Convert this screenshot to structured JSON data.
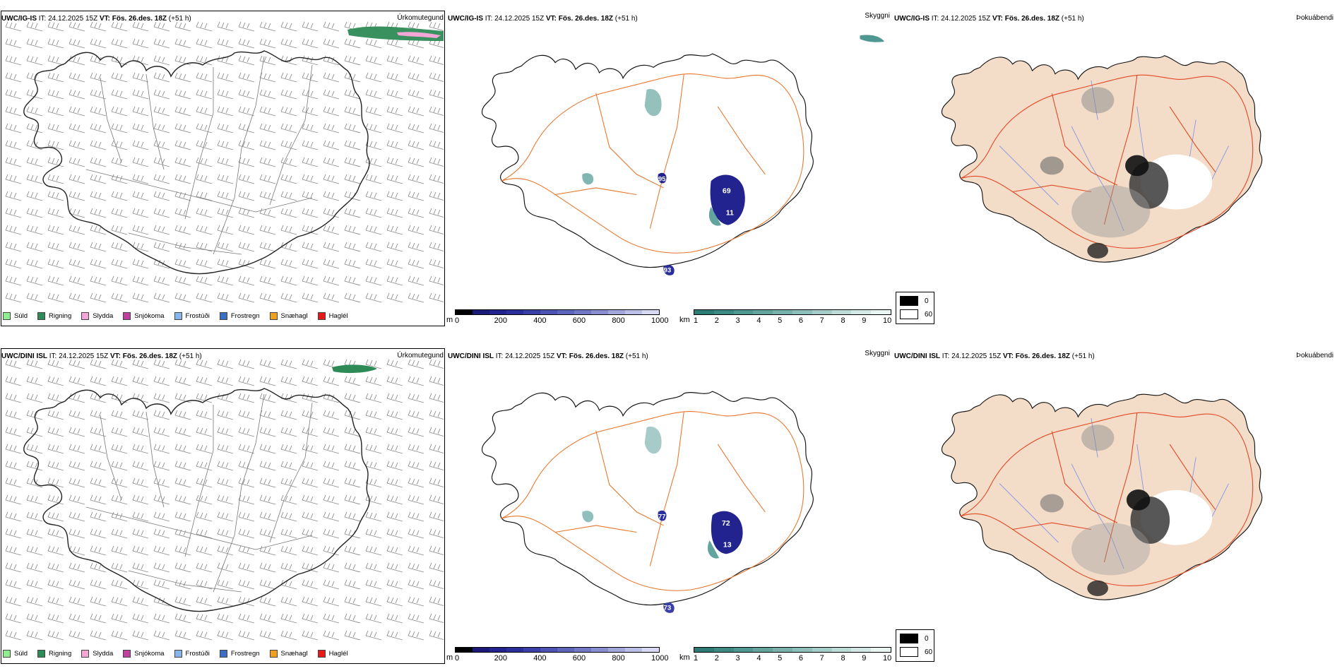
{
  "rows": [
    {
      "model": "UWC/IG-IS",
      "it_label": "IT:",
      "it_value": "24.12.2025 15Z",
      "vt_label": "VT:",
      "vt_value": "Fös. 26.des. 18Z",
      "lead": "(+51 h)",
      "panel_names": [
        "Úrkomutegund",
        "Skyggni",
        "Þokuábendi"
      ],
      "cloud_labels": [
        "69",
        "11",
        "95",
        "93"
      ]
    },
    {
      "model": "UWC/DINI ISL",
      "it_label": "IT:",
      "it_value": "24.12.2025 15Z",
      "vt_label": "VT:",
      "vt_value": "Fös. 26.des. 18Z",
      "lead": "(+51 h)",
      "panel_names": [
        "Úrkomutegund",
        "Skyggni",
        "Þokuábendi"
      ],
      "cloud_labels": [
        "72",
        "13",
        "77",
        "73"
      ]
    }
  ],
  "precip_legend": [
    {
      "label": "Súld",
      "color": "#90ee90"
    },
    {
      "label": "Rigning",
      "color": "#2e8b57"
    },
    {
      "label": "Slydda",
      "color": "#f4a6d7"
    },
    {
      "label": "Snjókoma",
      "color": "#c040a0"
    },
    {
      "label": "Frostúði",
      "color": "#87b6ee"
    },
    {
      "label": "Frostregn",
      "color": "#3a6fc8"
    },
    {
      "label": "Snæhagl",
      "color": "#f0a020"
    },
    {
      "label": "Haglél",
      "color": "#e81818"
    }
  ],
  "ceiling_scale": {
    "unit": "m",
    "ticks": [
      "0",
      "200",
      "400",
      "600",
      "800",
      "1000"
    ],
    "colors": [
      "#000000",
      "#1a1a78",
      "#22238f",
      "#2b2f9e",
      "#3b40a8",
      "#4c53b2",
      "#5e66bb",
      "#7178c4",
      "#8a8fd0",
      "#a3a7dc",
      "#bdbfe8",
      "#d8d9f2"
    ]
  },
  "visibility_scale": {
    "unit": "km",
    "ticks": [
      "1",
      "2",
      "3",
      "4",
      "5",
      "6",
      "7",
      "8",
      "9",
      "10"
    ],
    "colors": [
      "#2c7b74",
      "#3c8a83",
      "#4f9791",
      "#63a49e",
      "#79b2ad",
      "#8ec0bb",
      "#a5cec9",
      "#bcdcd8",
      "#d3e9e6",
      "#eaf5f3"
    ]
  },
  "fog_legend": [
    {
      "label": "0",
      "color": "#000000"
    },
    {
      "label": "60",
      "color": "#ffffff"
    }
  ],
  "colors": {
    "land_fill": "#f3dcc8",
    "roads": "#e8752a",
    "rivers": "#7b93e8",
    "coast": "#000000",
    "fog_roads": "#e24a26"
  }
}
